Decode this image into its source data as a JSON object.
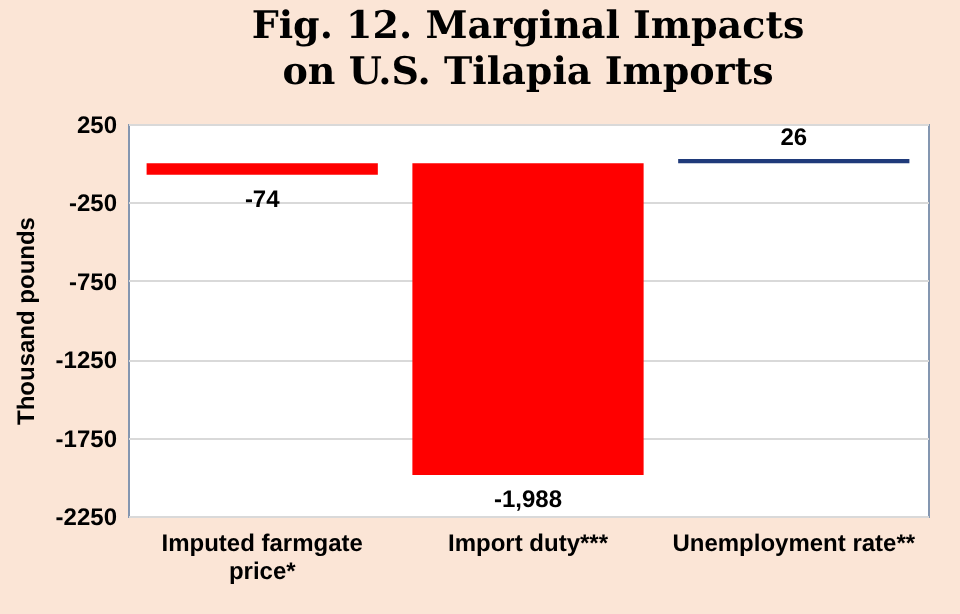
{
  "chart_data": {
    "type": "bar",
    "title": "Fig. 12. Marginal Impacts on U.S. Tilapia Imports",
    "ylabel": "Thousand pounds",
    "categories": [
      "Imputed farmgate price*",
      "Import duty***",
      "Unemployment rate**"
    ],
    "values": [
      -74,
      -1988,
      26
    ],
    "colors": [
      "#ff0000",
      "#ff0000",
      "#1f3a7a"
    ],
    "ylim": [
      -2250,
      250
    ],
    "yticks": [
      -2250,
      -1750,
      -1250,
      -750,
      -250,
      250
    ],
    "grid": "y",
    "data_labels": true,
    "value_labels": [
      "-74",
      "-1,988",
      "26"
    ]
  }
}
